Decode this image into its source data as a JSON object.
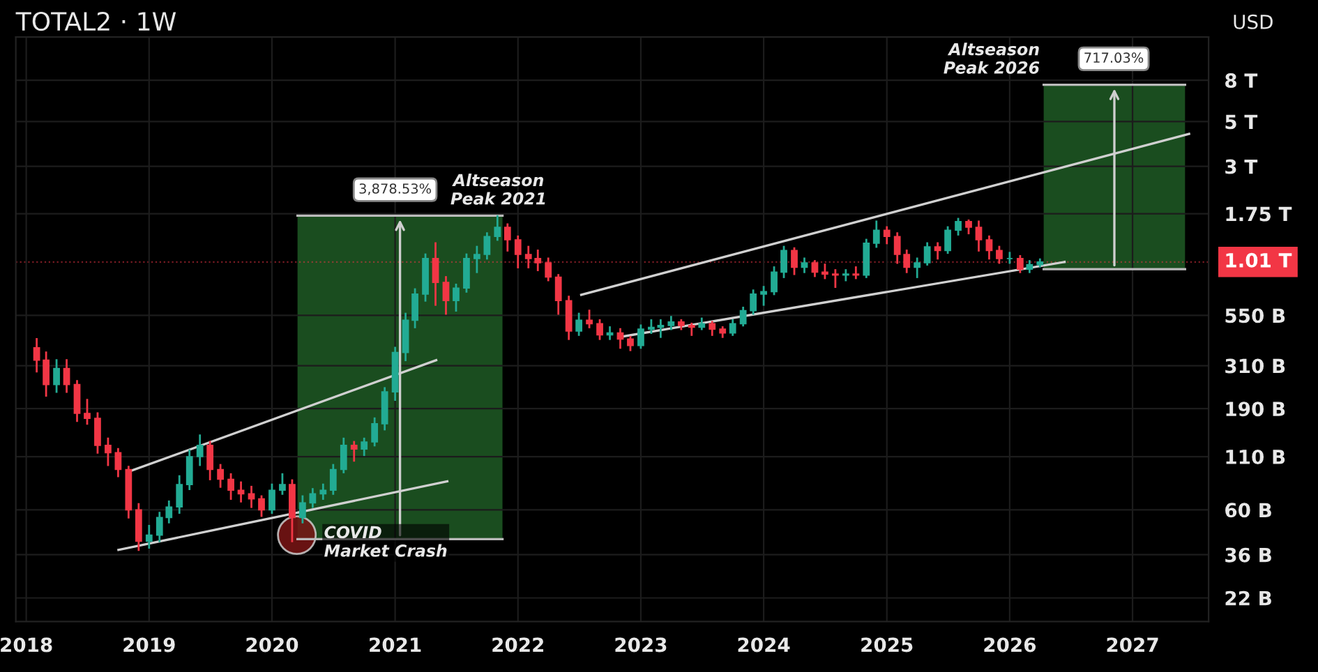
{
  "chart_data": {
    "type": "candlestick",
    "title": "TOTAL2 · 1W",
    "x": [
      "2018-02",
      "2018-03",
      "2018-04",
      "2018-05",
      "2018-06",
      "2018-07",
      "2018-08",
      "2018-09",
      "2018-10",
      "2018-11",
      "2018-12",
      "2019-01",
      "2019-02",
      "2019-03",
      "2019-04",
      "2019-05",
      "2019-06",
      "2019-07",
      "2019-08",
      "2019-09",
      "2019-10",
      "2019-11",
      "2019-12",
      "2020-01",
      "2020-02",
      "2020-03",
      "2020-04",
      "2020-05",
      "2020-06",
      "2020-07",
      "2020-08",
      "2020-09",
      "2020-10",
      "2020-11",
      "2020-12",
      "2021-01",
      "2021-02",
      "2021-03",
      "2021-04",
      "2021-05",
      "2021-06",
      "2021-07",
      "2021-08",
      "2021-09",
      "2021-10",
      "2021-11",
      "2021-12",
      "2022-01",
      "2022-02",
      "2022-03",
      "2022-04",
      "2022-05",
      "2022-06",
      "2022-07",
      "2022-08",
      "2022-09",
      "2022-10",
      "2022-11",
      "2022-12",
      "2023-01",
      "2023-02",
      "2023-03",
      "2023-04",
      "2023-05",
      "2023-06",
      "2023-07",
      "2023-08",
      "2023-09",
      "2023-10",
      "2023-11",
      "2023-12",
      "2024-01",
      "2024-02",
      "2024-03",
      "2024-04",
      "2024-05",
      "2024-06",
      "2024-07",
      "2024-08",
      "2024-09",
      "2024-10",
      "2024-11",
      "2024-12",
      "2025-01",
      "2025-02",
      "2025-03",
      "2025-04",
      "2025-05",
      "2025-06",
      "2025-07",
      "2025-08",
      "2025-09",
      "2025-10",
      "2025-11",
      "2025-12",
      "2026-01",
      "2026-02",
      "2026-03",
      "2026-04"
    ],
    "ohlc": [
      [
        380000000000.0,
        420000000000.0,
        290000000000.0,
        330000000000.0
      ],
      [
        330000000000.0,
        360000000000.0,
        220000000000.0,
        250000000000.0
      ],
      [
        250000000000.0,
        330000000000.0,
        230000000000.0,
        300000000000.0
      ],
      [
        300000000000.0,
        330000000000.0,
        230000000000.0,
        250000000000.0
      ],
      [
        250000000000.0,
        260000000000.0,
        165000000000.0,
        180000000000.0
      ],
      [
        180000000000.0,
        210000000000.0,
        160000000000.0,
        170000000000.0
      ],
      [
        170000000000.0,
        180000000000.0,
        115000000000.0,
        125000000000.0
      ],
      [
        125000000000.0,
        135000000000.0,
        100000000000.0,
        115000000000.0
      ],
      [
        115000000000.0,
        120000000000.0,
        88000000000.0,
        95000000000.0
      ],
      [
        95000000000.0,
        98000000000.0,
        55000000000.0,
        60000000000.0
      ],
      [
        60000000000.0,
        64000000000.0,
        38000000000.0,
        42000000000.0
      ],
      [
        42000000000.0,
        50000000000.0,
        39000000000.0,
        45000000000.0
      ],
      [
        45000000000.0,
        58000000000.0,
        42000000000.0,
        55000000000.0
      ],
      [
        55000000000.0,
        66000000000.0,
        52000000000.0,
        62000000000.0
      ],
      [
        62000000000.0,
        88000000000.0,
        58000000000.0,
        80000000000.0
      ],
      [
        80000000000.0,
        118000000000.0,
        76000000000.0,
        110000000000.0
      ],
      [
        110000000000.0,
        140000000000.0,
        100000000000.0,
        125000000000.0
      ],
      [
        125000000000.0,
        130000000000.0,
        85000000000.0,
        95000000000.0
      ],
      [
        95000000000.0,
        100000000000.0,
        78000000000.0,
        85000000000.0
      ],
      [
        85000000000.0,
        90000000000.0,
        68000000000.0,
        75000000000.0
      ],
      [
        75000000000.0,
        82000000000.0,
        66000000000.0,
        72000000000.0
      ],
      [
        72000000000.0,
        78000000000.0,
        62000000000.0,
        68000000000.0
      ],
      [
        68000000000.0,
        70000000000.0,
        56000000000.0,
        60000000000.0
      ],
      [
        60000000000.0,
        80000000000.0,
        58000000000.0,
        75000000000.0
      ],
      [
        75000000000.0,
        90000000000.0,
        72000000000.0,
        80000000000.0
      ],
      [
        80000000000.0,
        84000000000.0,
        42000000000.0,
        55000000000.0
      ],
      [
        55000000000.0,
        70000000000.0,
        52000000000.0,
        65000000000.0
      ],
      [
        65000000000.0,
        76000000000.0,
        62000000000.0,
        72000000000.0
      ],
      [
        72000000000.0,
        80000000000.0,
        68000000000.0,
        75000000000.0
      ],
      [
        75000000000.0,
        100000000000.0,
        72000000000.0,
        95000000000.0
      ],
      [
        95000000000.0,
        135000000000.0,
        92000000000.0,
        125000000000.0
      ],
      [
        125000000000.0,
        130000000000.0,
        105000000000.0,
        120000000000.0
      ],
      [
        120000000000.0,
        135000000000.0,
        112000000000.0,
        130000000000.0
      ],
      [
        130000000000.0,
        170000000000.0,
        125000000000.0,
        160000000000.0
      ],
      [
        160000000000.0,
        240000000000.0,
        150000000000.0,
        230000000000.0
      ],
      [
        230000000000.0,
        380000000000.0,
        210000000000.0,
        360000000000.0
      ],
      [
        360000000000.0,
        560000000000.0,
        330000000000.0,
        520000000000.0
      ],
      [
        520000000000.0,
        740000000000.0,
        480000000000.0,
        700000000000.0
      ],
      [
        700000000000.0,
        1100000000000.0,
        650000000000.0,
        1050000000000.0
      ],
      [
        1050000000000.0,
        1250000000000.0,
        620000000000.0,
        800000000000.0
      ],
      [
        800000000000.0,
        850000000000.0,
        560000000000.0,
        650000000000.0
      ],
      [
        650000000000.0,
        780000000000.0,
        580000000000.0,
        750000000000.0
      ],
      [
        750000000000.0,
        1100000000000.0,
        720000000000.0,
        1050000000000.0
      ],
      [
        1050000000000.0,
        1200000000000.0,
        900000000000.0,
        1100000000000.0
      ],
      [
        1100000000000.0,
        1400000000000.0,
        1050000000000.0,
        1350000000000.0
      ],
      [
        1350000000000.0,
        1700000000000.0,
        1300000000000.0,
        1500000000000.0
      ],
      [
        1500000000000.0,
        1550000000000.0,
        1150000000000.0,
        1300000000000.0
      ],
      [
        1300000000000.0,
        1350000000000.0,
        950000000000.0,
        1100000000000.0
      ],
      [
        1100000000000.0,
        1200000000000.0,
        950000000000.0,
        1050000000000.0
      ],
      [
        1050000000000.0,
        1150000000000.0,
        920000000000.0,
        1000000000000.0
      ],
      [
        1000000000000.0,
        1050000000000.0,
        820000000000.0,
        850000000000.0
      ],
      [
        850000000000.0,
        870000000000.0,
        560000000000.0,
        650000000000.0
      ],
      [
        650000000000.0,
        680000000000.0,
        420000000000.0,
        460000000000.0
      ],
      [
        460000000000.0,
        560000000000.0,
        440000000000.0,
        520000000000.0
      ],
      [
        520000000000.0,
        580000000000.0,
        480000000000.0,
        500000000000.0
      ],
      [
        500000000000.0,
        520000000000.0,
        420000000000.0,
        440000000000.0
      ],
      [
        440000000000.0,
        480000000000.0,
        420000000000.0,
        450000000000.0
      ],
      [
        450000000000.0,
        470000000000.0,
        380000000000.0,
        420000000000.0
      ],
      [
        420000000000.0,
        430000000000.0,
        370000000000.0,
        390000000000.0
      ],
      [
        390000000000.0,
        490000000000.0,
        380000000000.0,
        470000000000.0
      ],
      [
        470000000000.0,
        520000000000.0,
        450000000000.0,
        480000000000.0
      ],
      [
        480000000000.0,
        520000000000.0,
        430000000000.0,
        490000000000.0
      ],
      [
        490000000000.0,
        540000000000.0,
        470000000000.0,
        510000000000.0
      ],
      [
        510000000000.0,
        520000000000.0,
        470000000000.0,
        490000000000.0
      ],
      [
        490000000000.0,
        500000000000.0,
        440000000000.0,
        480000000000.0
      ],
      [
        480000000000.0,
        530000000000.0,
        470000000000.0,
        500000000000.0
      ],
      [
        500000000000.0,
        510000000000.0,
        440000000000.0,
        470000000000.0
      ],
      [
        470000000000.0,
        480000000000.0,
        430000000000.0,
        450000000000.0
      ],
      [
        450000000000.0,
        520000000000.0,
        440000000000.0,
        500000000000.0
      ],
      [
        500000000000.0,
        600000000000.0,
        490000000000.0,
        580000000000.0
      ],
      [
        580000000000.0,
        730000000000.0,
        560000000000.0,
        700000000000.0
      ],
      [
        700000000000.0,
        760000000000.0,
        620000000000.0,
        720000000000.0
      ],
      [
        720000000000.0,
        950000000000.0,
        700000000000.0,
        900000000000.0
      ],
      [
        900000000000.0,
        1200000000000.0,
        850000000000.0,
        1150000000000.0
      ],
      [
        1150000000000.0,
        1180000000000.0,
        880000000000.0,
        950000000000.0
      ],
      [
        950000000000.0,
        1050000000000.0,
        900000000000.0,
        1000000000000.0
      ],
      [
        1000000000000.0,
        1020000000000.0,
        860000000000.0,
        900000000000.0
      ],
      [
        900000000000.0,
        980000000000.0,
        840000000000.0,
        880000000000.0
      ],
      [
        880000000000.0,
        920000000000.0,
        760000000000.0,
        870000000000.0
      ],
      [
        870000000000.0,
        920000000000.0,
        820000000000.0,
        880000000000.0
      ],
      [
        880000000000.0,
        950000000000.0,
        840000000000.0,
        870000000000.0
      ],
      [
        870000000000.0,
        1300000000000.0,
        850000000000.0,
        1250000000000.0
      ],
      [
        1250000000000.0,
        1600000000000.0,
        1200000000000.0,
        1450000000000.0
      ],
      [
        1450000000000.0,
        1500000000000.0,
        1250000000000.0,
        1350000000000.0
      ],
      [
        1350000000000.0,
        1400000000000.0,
        1000000000000.0,
        1100000000000.0
      ],
      [
        1100000000000.0,
        1150000000000.0,
        900000000000.0,
        950000000000.0
      ],
      [
        950000000000.0,
        1050000000000.0,
        850000000000.0,
        1000000000000.0
      ],
      [
        1000000000000.0,
        1250000000000.0,
        980000000000.0,
        1200000000000.0
      ],
      [
        1200000000000.0,
        1250000000000.0,
        1050000000000.0,
        1150000000000.0
      ],
      [
        1150000000000.0,
        1500000000000.0,
        1120000000000.0,
        1450000000000.0
      ],
      [
        1450000000000.0,
        1650000000000.0,
        1380000000000.0,
        1600000000000.0
      ],
      [
        1600000000000.0,
        1620000000000.0,
        1400000000000.0,
        1500000000000.0
      ],
      [
        1500000000000.0,
        1600000000000.0,
        1150000000000.0,
        1300000000000.0
      ],
      [
        1300000000000.0,
        1350000000000.0,
        1050000000000.0,
        1150000000000.0
      ],
      [
        1150000000000.0,
        1200000000000.0,
        1000000000000.0,
        1050000000000.0
      ],
      [
        1050000000000.0,
        1120000000000.0,
        1000000000000.0,
        1050000000000.0
      ],
      [
        1050000000000.0,
        1080000000000.0,
        900000000000.0,
        930000000000.0
      ],
      [
        930000000000.0,
        1020000000000.0,
        900000000000.0,
        980000000000.0
      ],
      [
        980000000000.0,
        1040000000000.0,
        960000000000.0,
        1010000000000.0
      ]
    ],
    "colors": [
      "#f23645",
      "#f23645",
      "#22ab94",
      "#f23645",
      "#f23645",
      "#f23645",
      "#f23645",
      "#f23645",
      "#f23645",
      "#f23645",
      "#f23645",
      "#22ab94",
      "#22ab94",
      "#22ab94",
      "#22ab94",
      "#22ab94",
      "#22ab94",
      "#f23645",
      "#f23645",
      "#f23645",
      "#f23645",
      "#f23645",
      "#f23645",
      "#22ab94",
      "#22ab94",
      "#f23645",
      "#22ab94",
      "#22ab94",
      "#22ab94",
      "#22ab94",
      "#22ab94",
      "#f23645",
      "#22ab94",
      "#22ab94",
      "#22ab94",
      "#22ab94",
      "#22ab94",
      "#22ab94",
      "#22ab94",
      "#f23645",
      "#f23645",
      "#22ab94",
      "#22ab94",
      "#22ab94",
      "#22ab94",
      "#22ab94",
      "#f23645",
      "#f23645",
      "#f23645",
      "#f23645",
      "#f23645",
      "#f23645",
      "#f23645",
      "#22ab94",
      "#f23645",
      "#f23645",
      "#22ab94",
      "#f23645",
      "#f23645",
      "#22ab94",
      "#22ab94",
      "#22ab94",
      "#22ab94",
      "#f23645",
      "#f23645",
      "#22ab94",
      "#f23645",
      "#f23645",
      "#22ab94",
      "#22ab94",
      "#22ab94",
      "#22ab94",
      "#22ab94",
      "#22ab94",
      "#f23645",
      "#22ab94",
      "#f23645",
      "#f23645",
      "#f23645",
      "#22ab94",
      "#f23645",
      "#22ab94",
      "#22ab94",
      "#f23645",
      "#f23645",
      "#f23645",
      "#22ab94",
      "#22ab94",
      "#f23645",
      "#22ab94",
      "#22ab94",
      "#f23645",
      "#f23645",
      "#f23645",
      "#f23645",
      "#22ab94",
      "#f23645",
      "#22ab94",
      "#22ab94"
    ],
    "series": [
      {
        "type": "line",
        "color": "#bbbbbb",
        "x": [
          "2020-03-17",
          "2021-11-16"
        ],
        "values": [
          43000000000.0,
          43000000000.0
        ]
      },
      {
        "type": "line",
        "color": "#bbbbbb",
        "x": [
          "2020-03-17",
          "2021-11-16"
        ],
        "values": [
          1711000000000.0,
          1711000000000.0
        ]
      },
      {
        "type": "line",
        "color": "#bbbbbb",
        "x": [
          "2026-04-12",
          "2027-06-06"
        ],
        "values": [
          930000000000.0,
          930000000000.0
        ]
      },
      {
        "type": "line",
        "color": "#bbbbbb",
        "x": [
          "2026-04-12",
          "2027-06-06"
        ],
        "values": [
          7600000000000.0,
          7600000000000.0
        ]
      },
      {
        "type": "line",
        "color": "#d0d0d0",
        "x": [
          "2018-10-02",
          "2021-06-05"
        ],
        "values": [
          38000000000.0,
          83000000000.0
        ]
      },
      {
        "type": "line",
        "color": "#d0d0d0",
        "x": [
          "2018-11-04",
          "2021-05-03"
        ],
        "values": [
          93000000000.0,
          330000000000.0
        ]
      },
      {
        "type": "line",
        "color": "#d0d0d0",
        "x": [
          "2022-11-08",
          "2026-06-13"
        ],
        "values": [
          432000000000.0,
          1010000000000.0
        ]
      },
      {
        "type": "line",
        "color": "#d0d0d0",
        "x": [
          "2022-07-08",
          "2027-06-18"
        ],
        "values": [
          695000000000.0,
          4345000000000.0
        ]
      },
      {
        "type": "scatter",
        "color": "#7a1515",
        "x": [
          "2020-03-15"
        ],
        "values": [
          45000000000.0
        ]
      }
    ],
    "annotations": [
      {
        "text": "3,878.53%",
        "x": "2021-01-01",
        "y": 1711000000000.0
      },
      {
        "text": "717.03%",
        "x": "2026-11-06",
        "y": 7600000000000.0
      },
      {
        "text": "Altseason\nPeak 2021",
        "x": "2021-11-16",
        "y": 1711000000000.0
      },
      {
        "text": "Altseason\nPeak 2026",
        "x": "2026-04-12",
        "y": 7600000000000.0
      },
      {
        "text": "COVID\nMarket Crash",
        "x": "2020-03-15",
        "y": 45000000000.0
      },
      "USD"
    ],
    "ref_lines": [
      {
        "axis": "y",
        "value": 1010000000000.0,
        "label": "1.01 T",
        "color": "#f23645",
        "line_style": "dotted"
      }
    ],
    "log": "y",
    "ylim": [
      16800000000.0,
      13100000000000.0
    ],
    "yticks": [
      {
        "value": 22000000000.0,
        "label": "22 B"
      },
      {
        "value": 36000000000.0,
        "label": "36 B"
      },
      {
        "value": 60000000000.0,
        "label": "60 B"
      },
      {
        "value": 110000000000.0,
        "label": "110 B"
      },
      {
        "value": 190000000000.0,
        "label": "190 B"
      },
      {
        "value": 310000000000.0,
        "label": "310 B"
      },
      {
        "value": 550000000000.0,
        "label": "550 B"
      },
      {
        "value": 1750000000000.0,
        "label": "1.75 T"
      },
      {
        "value": 3000000000000.0,
        "label": "3 T"
      },
      {
        "value": 5000000000000.0,
        "label": "5 T"
      },
      {
        "value": 8000000000000.0,
        "label": "8 T"
      }
    ],
    "xlim": [
      "2017-12-01",
      "2027-08-15"
    ],
    "xticks": [
      {
        "value": "2018",
        "label": "2018"
      },
      {
        "value": "2019",
        "label": "2019"
      },
      {
        "value": "2020",
        "label": "2020"
      },
      {
        "value": "2021",
        "label": "2021"
      },
      {
        "value": "2022",
        "label": "2022"
      },
      {
        "value": "2023",
        "label": "2023"
      },
      {
        "value": "2024",
        "label": "2024"
      },
      {
        "value": "2025",
        "label": "2025"
      },
      {
        "value": "2026",
        "label": "2026"
      },
      {
        "value": "2027",
        "label": "2027"
      }
    ],
    "grid": true
  }
}
